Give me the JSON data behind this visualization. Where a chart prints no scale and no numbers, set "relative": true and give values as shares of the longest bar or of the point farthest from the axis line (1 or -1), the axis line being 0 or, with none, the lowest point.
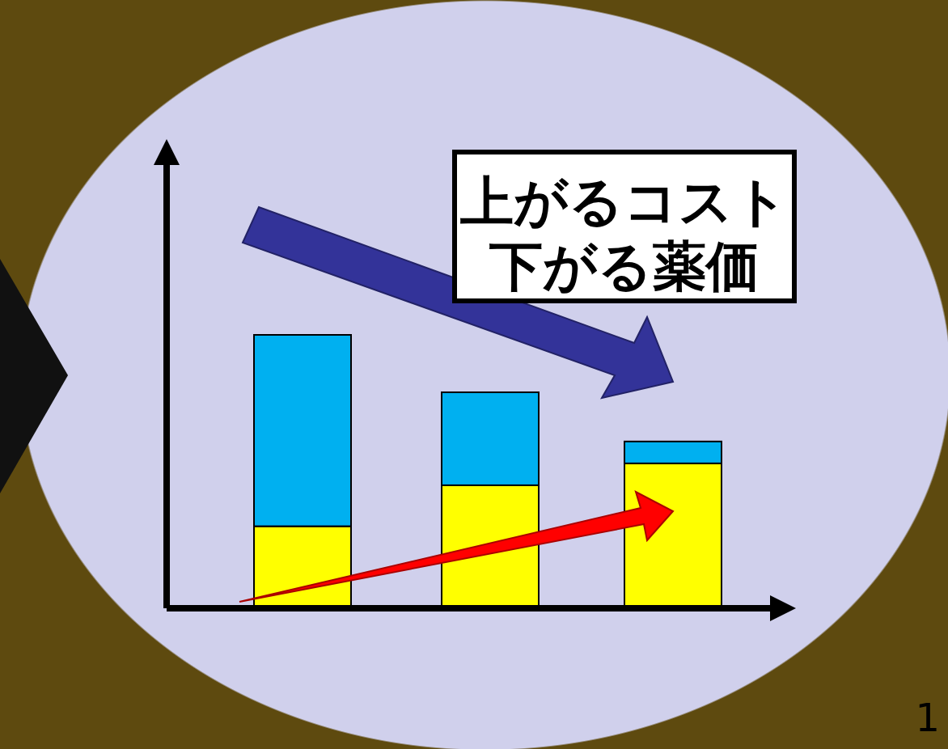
{
  "chart_data": {
    "type": "bar",
    "title": "上がるコスト",
    "subtitle": "下がる薬価",
    "relative": true,
    "stacked": true,
    "categories": [
      null,
      null,
      null
    ],
    "series": [
      {
        "color": "#ffff00",
        "values": [
          0.3,
          0.45,
          0.53
        ]
      },
      {
        "color": "#00b0f0",
        "values": [
          0.7,
          0.34,
          0.08
        ]
      }
    ],
    "annotations": [
      "1"
    ]
  }
}
